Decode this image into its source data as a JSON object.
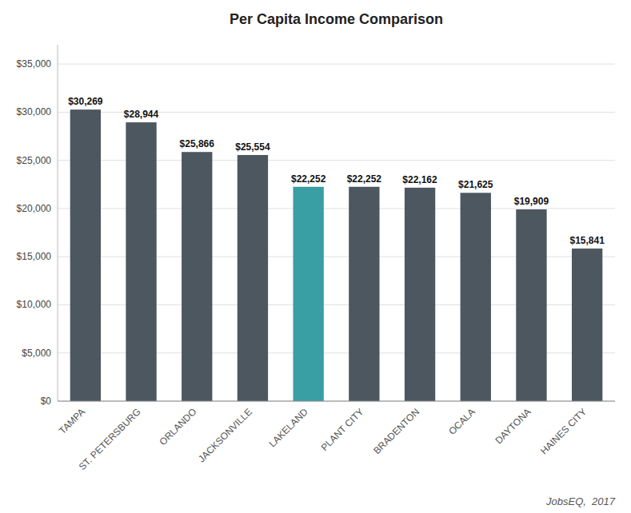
{
  "chart_data": {
    "type": "bar",
    "title": "Per Capita Income Comparison",
    "categories": [
      "TAMPA",
      "ST. PETERSBURG",
      "ORLANDO",
      "JACKSONVILLE",
      "LAKELAND",
      "PLANT CITY",
      "BRADENTON",
      "OCALA",
      "DAYTONA",
      "HAINES CITY"
    ],
    "values": [
      30269,
      28944,
      25866,
      25554,
      22252,
      22252,
      22162,
      21625,
      19909,
      15841
    ],
    "value_labels": [
      "$30,269",
      "$28,944",
      "$25,866",
      "$25,554",
      "$22,252",
      "$22,252",
      "$22,162",
      "$21,625",
      "$19,909",
      "$15,841"
    ],
    "colors": [
      "#4d5760",
      "#4d5760",
      "#4d5760",
      "#4d5760",
      "#3a9ea5",
      "#4d5760",
      "#4d5760",
      "#4d5760",
      "#4d5760",
      "#4d5760"
    ],
    "data_labels": true,
    "ylim": [
      0,
      37000
    ],
    "yticks": [
      {
        "value": 0,
        "label": "$0"
      },
      {
        "value": 5000,
        "label": "$5,000"
      },
      {
        "value": 10000,
        "label": "$10,000"
      },
      {
        "value": 15000,
        "label": "$15,000"
      },
      {
        "value": 20000,
        "label": "$20,000"
      },
      {
        "value": 25000,
        "label": "$25,000"
      },
      {
        "value": 30000,
        "label": "$30,000"
      },
      {
        "value": 35000,
        "label": "$35,000"
      }
    ],
    "grid": true,
    "source": "JobsEQ,  2017"
  }
}
